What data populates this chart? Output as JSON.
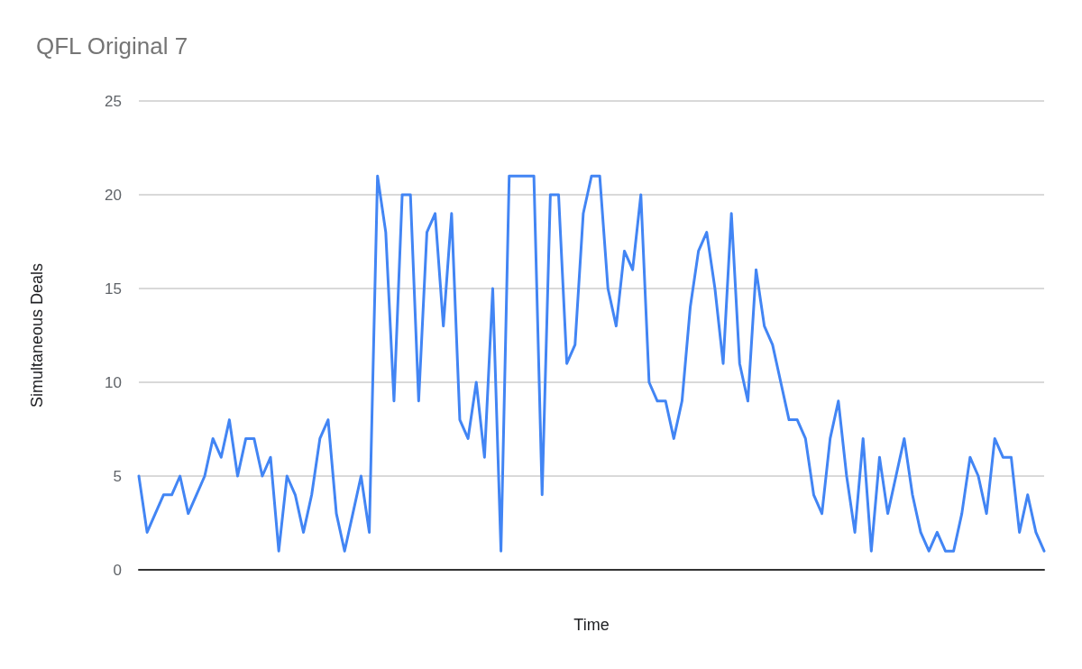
{
  "chart_data": {
    "type": "line",
    "title": "QFL Original 7",
    "xlabel": "Time",
    "ylabel": "Simultaneous Deals",
    "categories": [
      null,
      null,
      null,
      null,
      null,
      null,
      null,
      null,
      null,
      null,
      null,
      null,
      null,
      null,
      null,
      null,
      null,
      null,
      null,
      null,
      null,
      null,
      null,
      null,
      null,
      null,
      null,
      null,
      null,
      null,
      null,
      null,
      null,
      null,
      null,
      null,
      null,
      null,
      null,
      null,
      null,
      null,
      null,
      null,
      null,
      null,
      null,
      null,
      null,
      null,
      null,
      null,
      null,
      null,
      null,
      null,
      null,
      null,
      null,
      null,
      null,
      null,
      null,
      null,
      null,
      null,
      null,
      null,
      null,
      null,
      null,
      null,
      null,
      null,
      null,
      null,
      null,
      null,
      null,
      null,
      null,
      null,
      null,
      null,
      null,
      null,
      null,
      null,
      null,
      null,
      null,
      null,
      null,
      null,
      null,
      null,
      null,
      null,
      null,
      null,
      null,
      null,
      null,
      null,
      null,
      null,
      null,
      null,
      null,
      null,
      null
    ],
    "series": [
      {
        "color": "#4285f4",
        "values": [
          5,
          2,
          3,
          4,
          4,
          5,
          3,
          4,
          5,
          7,
          6,
          8,
          5,
          7,
          7,
          5,
          6,
          1,
          5,
          4,
          2,
          4,
          7,
          8,
          3,
          1,
          3,
          5,
          2,
          21,
          18,
          9,
          20,
          20,
          9,
          18,
          19,
          13,
          19,
          8,
          7,
          10,
          6,
          15,
          1,
          21,
          21,
          21,
          21,
          4,
          20,
          20,
          11,
          12,
          19,
          21,
          21,
          15,
          13,
          17,
          16,
          20,
          10,
          9,
          9,
          7,
          9,
          14,
          17,
          18,
          15,
          11,
          19,
          11,
          9,
          16,
          13,
          12,
          10,
          8,
          8,
          7,
          4,
          3,
          7,
          9,
          5,
          2,
          7,
          1,
          6,
          3,
          5,
          7,
          4,
          2,
          1,
          2,
          1,
          1,
          3,
          6,
          5,
          3,
          7,
          6,
          6,
          2,
          4,
          2,
          1
        ]
      }
    ],
    "ylim": [
      0,
      25
    ],
    "yticks": [
      0,
      5,
      10,
      15,
      20,
      25
    ],
    "grid": "y",
    "line_style": "solid"
  }
}
